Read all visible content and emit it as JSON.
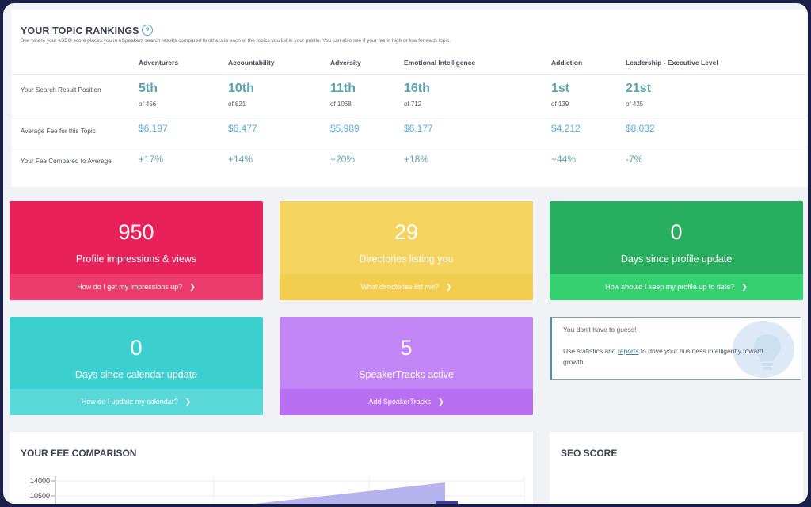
{
  "rankings": {
    "title": "YOUR TOPIC RANKINGS",
    "help_icon": "?",
    "subtitle": "See where your eSEO score places you in eSpeakers search results compared to others in each of the topics you list in your profile. You can also see if your fee is high or low for each topic.",
    "row_labels": {
      "position": "Your Search Result Position",
      "fee": "Average Fee for this Topic",
      "compared": "Your Fee Compared to Average"
    },
    "topics": [
      {
        "name": "Adventurers",
        "position": "5th",
        "of": "of 456",
        "fee": "$6,197",
        "compared": "+17%"
      },
      {
        "name": "Accountability",
        "position": "10th",
        "of": "of 821",
        "fee": "$6,477",
        "compared": "+14%"
      },
      {
        "name": "Adversity",
        "position": "11th",
        "of": "of 1068",
        "fee": "$5,989",
        "compared": "+20%"
      },
      {
        "name": "Emotional Intelligence",
        "position": "16th",
        "of": "of 712",
        "fee": "$6,177",
        "compared": "+18%"
      },
      {
        "name": "Addiction",
        "position": "1st",
        "of": "of 139",
        "fee": "$4,212",
        "compared": "+44%"
      },
      {
        "name": "Leadership - Executive Level",
        "position": "21st",
        "of": "of 425",
        "fee": "$8,032",
        "compared": "-7%"
      }
    ]
  },
  "cards": [
    {
      "value": "950",
      "label": "Profile impressions & views",
      "link": "How do I get my impressions up?",
      "color": "#e8215a",
      "foot_color": "#eb3b6d"
    },
    {
      "value": "29",
      "label": "Directories listing you",
      "link": "What directories list me?",
      "color": "#f4d35e",
      "foot_color": "#f3cd4e"
    },
    {
      "value": "0",
      "label": "Days since profile update",
      "link": "How should I keep my profile up to date?",
      "color": "#27ae5f",
      "foot_color": "#35d070"
    },
    {
      "value": "0",
      "label": "Days since calendar update",
      "link": "How do I update my calendar?",
      "color": "#3ccfcf",
      "foot_color": "#5ad8d8"
    },
    {
      "value": "5",
      "label": "SpeakerTracks active",
      "link": "Add SpeakerTracks",
      "color": "#c285f5",
      "foot_color": "#ba6ff2"
    }
  ],
  "tip": {
    "line1": "You don't have to guess!",
    "line2_pre": "Use statistics and ",
    "line2_link": "reports",
    "line2_post": " to drive your business intelligently toward growth."
  },
  "fee_comparison": {
    "title": "YOUR FEE COMPARISON",
    "y_ticks": [
      "14000",
      "10500"
    ]
  },
  "seo_score": {
    "title": "SEO SCORE"
  }
}
